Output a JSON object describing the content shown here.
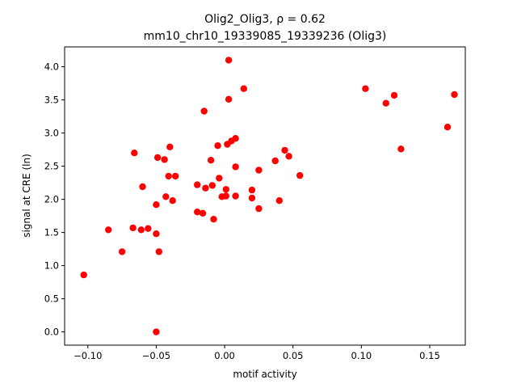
{
  "chart_data": {
    "type": "scatter",
    "title_line1": "Olig2_Olig3, ρ = 0.62",
    "title_line2": "mm10_chr10_19339085_19339236 (Olig3)",
    "xlabel": "motif activity",
    "ylabel": "signal at CRE (ln)",
    "xlim": [
      -0.117,
      0.176
    ],
    "ylim": [
      -0.2,
      4.3
    ],
    "xticks": [
      {
        "value": -0.1,
        "label": "−0.10"
      },
      {
        "value": -0.05,
        "label": "−0.05"
      },
      {
        "value": 0.0,
        "label": "0.00"
      },
      {
        "value": 0.05,
        "label": "0.05"
      },
      {
        "value": 0.1,
        "label": "0.10"
      },
      {
        "value": 0.15,
        "label": "0.15"
      }
    ],
    "yticks": [
      {
        "value": 0.0,
        "label": "0.0"
      },
      {
        "value": 0.5,
        "label": "0.5"
      },
      {
        "value": 1.0,
        "label": "1.0"
      },
      {
        "value": 1.5,
        "label": "1.5"
      },
      {
        "value": 2.0,
        "label": "2.0"
      },
      {
        "value": 2.5,
        "label": "2.5"
      },
      {
        "value": 3.0,
        "label": "3.0"
      },
      {
        "value": 3.5,
        "label": "3.5"
      },
      {
        "value": 4.0,
        "label": "4.0"
      }
    ],
    "marker_color": "#ff0000",
    "grid": false,
    "points": [
      [
        -0.103,
        0.86
      ],
      [
        -0.085,
        1.54
      ],
      [
        -0.075,
        1.21
      ],
      [
        -0.067,
        1.57
      ],
      [
        -0.066,
        2.7
      ],
      [
        -0.061,
        1.54
      ],
      [
        -0.06,
        2.19
      ],
      [
        -0.056,
        1.56
      ],
      [
        -0.05,
        0.0
      ],
      [
        -0.05,
        1.48
      ],
      [
        -0.05,
        1.92
      ],
      [
        -0.049,
        2.63
      ],
      [
        -0.048,
        1.21
      ],
      [
        -0.044,
        2.6
      ],
      [
        -0.043,
        2.04
      ],
      [
        -0.041,
        2.35
      ],
      [
        -0.04,
        2.79
      ],
      [
        -0.038,
        1.98
      ],
      [
        -0.036,
        2.35
      ],
      [
        -0.02,
        2.22
      ],
      [
        -0.02,
        1.81
      ],
      [
        -0.016,
        1.79
      ],
      [
        -0.015,
        3.33
      ],
      [
        -0.014,
        2.17
      ],
      [
        -0.01,
        2.59
      ],
      [
        -0.009,
        2.21
      ],
      [
        -0.008,
        1.7
      ],
      [
        -0.005,
        2.81
      ],
      [
        -0.004,
        2.32
      ],
      [
        -0.002,
        2.04
      ],
      [
        0.001,
        2.15
      ],
      [
        0.001,
        2.05
      ],
      [
        0.002,
        2.83
      ],
      [
        0.003,
        4.1
      ],
      [
        0.003,
        3.51
      ],
      [
        0.005,
        2.88
      ],
      [
        0.008,
        2.92
      ],
      [
        0.008,
        2.49
      ],
      [
        0.008,
        2.05
      ],
      [
        0.014,
        3.67
      ],
      [
        0.02,
        2.14
      ],
      [
        0.02,
        2.02
      ],
      [
        0.025,
        1.86
      ],
      [
        0.025,
        2.44
      ],
      [
        0.037,
        2.58
      ],
      [
        0.04,
        1.98
      ],
      [
        0.044,
        2.74
      ],
      [
        0.047,
        2.65
      ],
      [
        0.055,
        2.36
      ],
      [
        0.103,
        3.67
      ],
      [
        0.118,
        3.45
      ],
      [
        0.124,
        3.57
      ],
      [
        0.129,
        2.76
      ],
      [
        0.163,
        3.09
      ],
      [
        0.168,
        3.58
      ]
    ]
  }
}
